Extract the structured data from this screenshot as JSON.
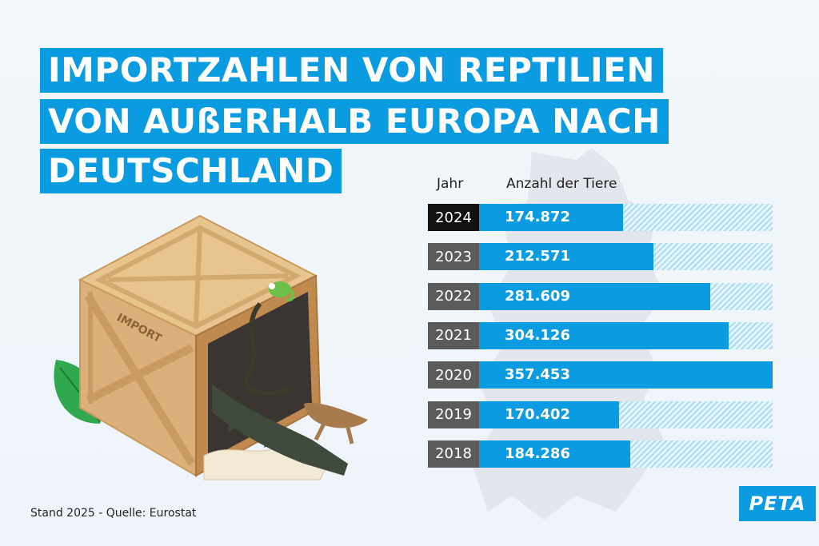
{
  "title": {
    "line1": "IMPORTZAHLEN VON REPTILIEN",
    "line2": "VON AUßERHALB EUROPA NACH",
    "line3": "DEUTSCHLAND"
  },
  "table_headers": {
    "year": "Jahr",
    "count": "Anzahl der Tiere"
  },
  "chart_data": {
    "type": "bar",
    "orientation": "horizontal",
    "categories": [
      "2024",
      "2023",
      "2022",
      "2021",
      "2020",
      "2019",
      "2018"
    ],
    "values": [
      174872,
      212571,
      281609,
      304126,
      357453,
      170402,
      184286
    ],
    "value_labels": [
      "174.872",
      "212.571",
      "281.609",
      "304.126",
      "357.453",
      "170.402",
      "184.286"
    ],
    "xlim": [
      0,
      357453
    ],
    "highlight_category": "2024",
    "colors": {
      "bar": "#0a9be0",
      "year_cell": "#5b5b5b",
      "year_cell_highlight": "#111111"
    }
  },
  "illustration": {
    "crate_label": "IMPORT"
  },
  "footer": {
    "source": "Stand 2025 - Quelle: Eurostat",
    "logo": "PETA"
  },
  "colors": {
    "accent": "#0a9be0",
    "background": "#f2f7fb"
  }
}
